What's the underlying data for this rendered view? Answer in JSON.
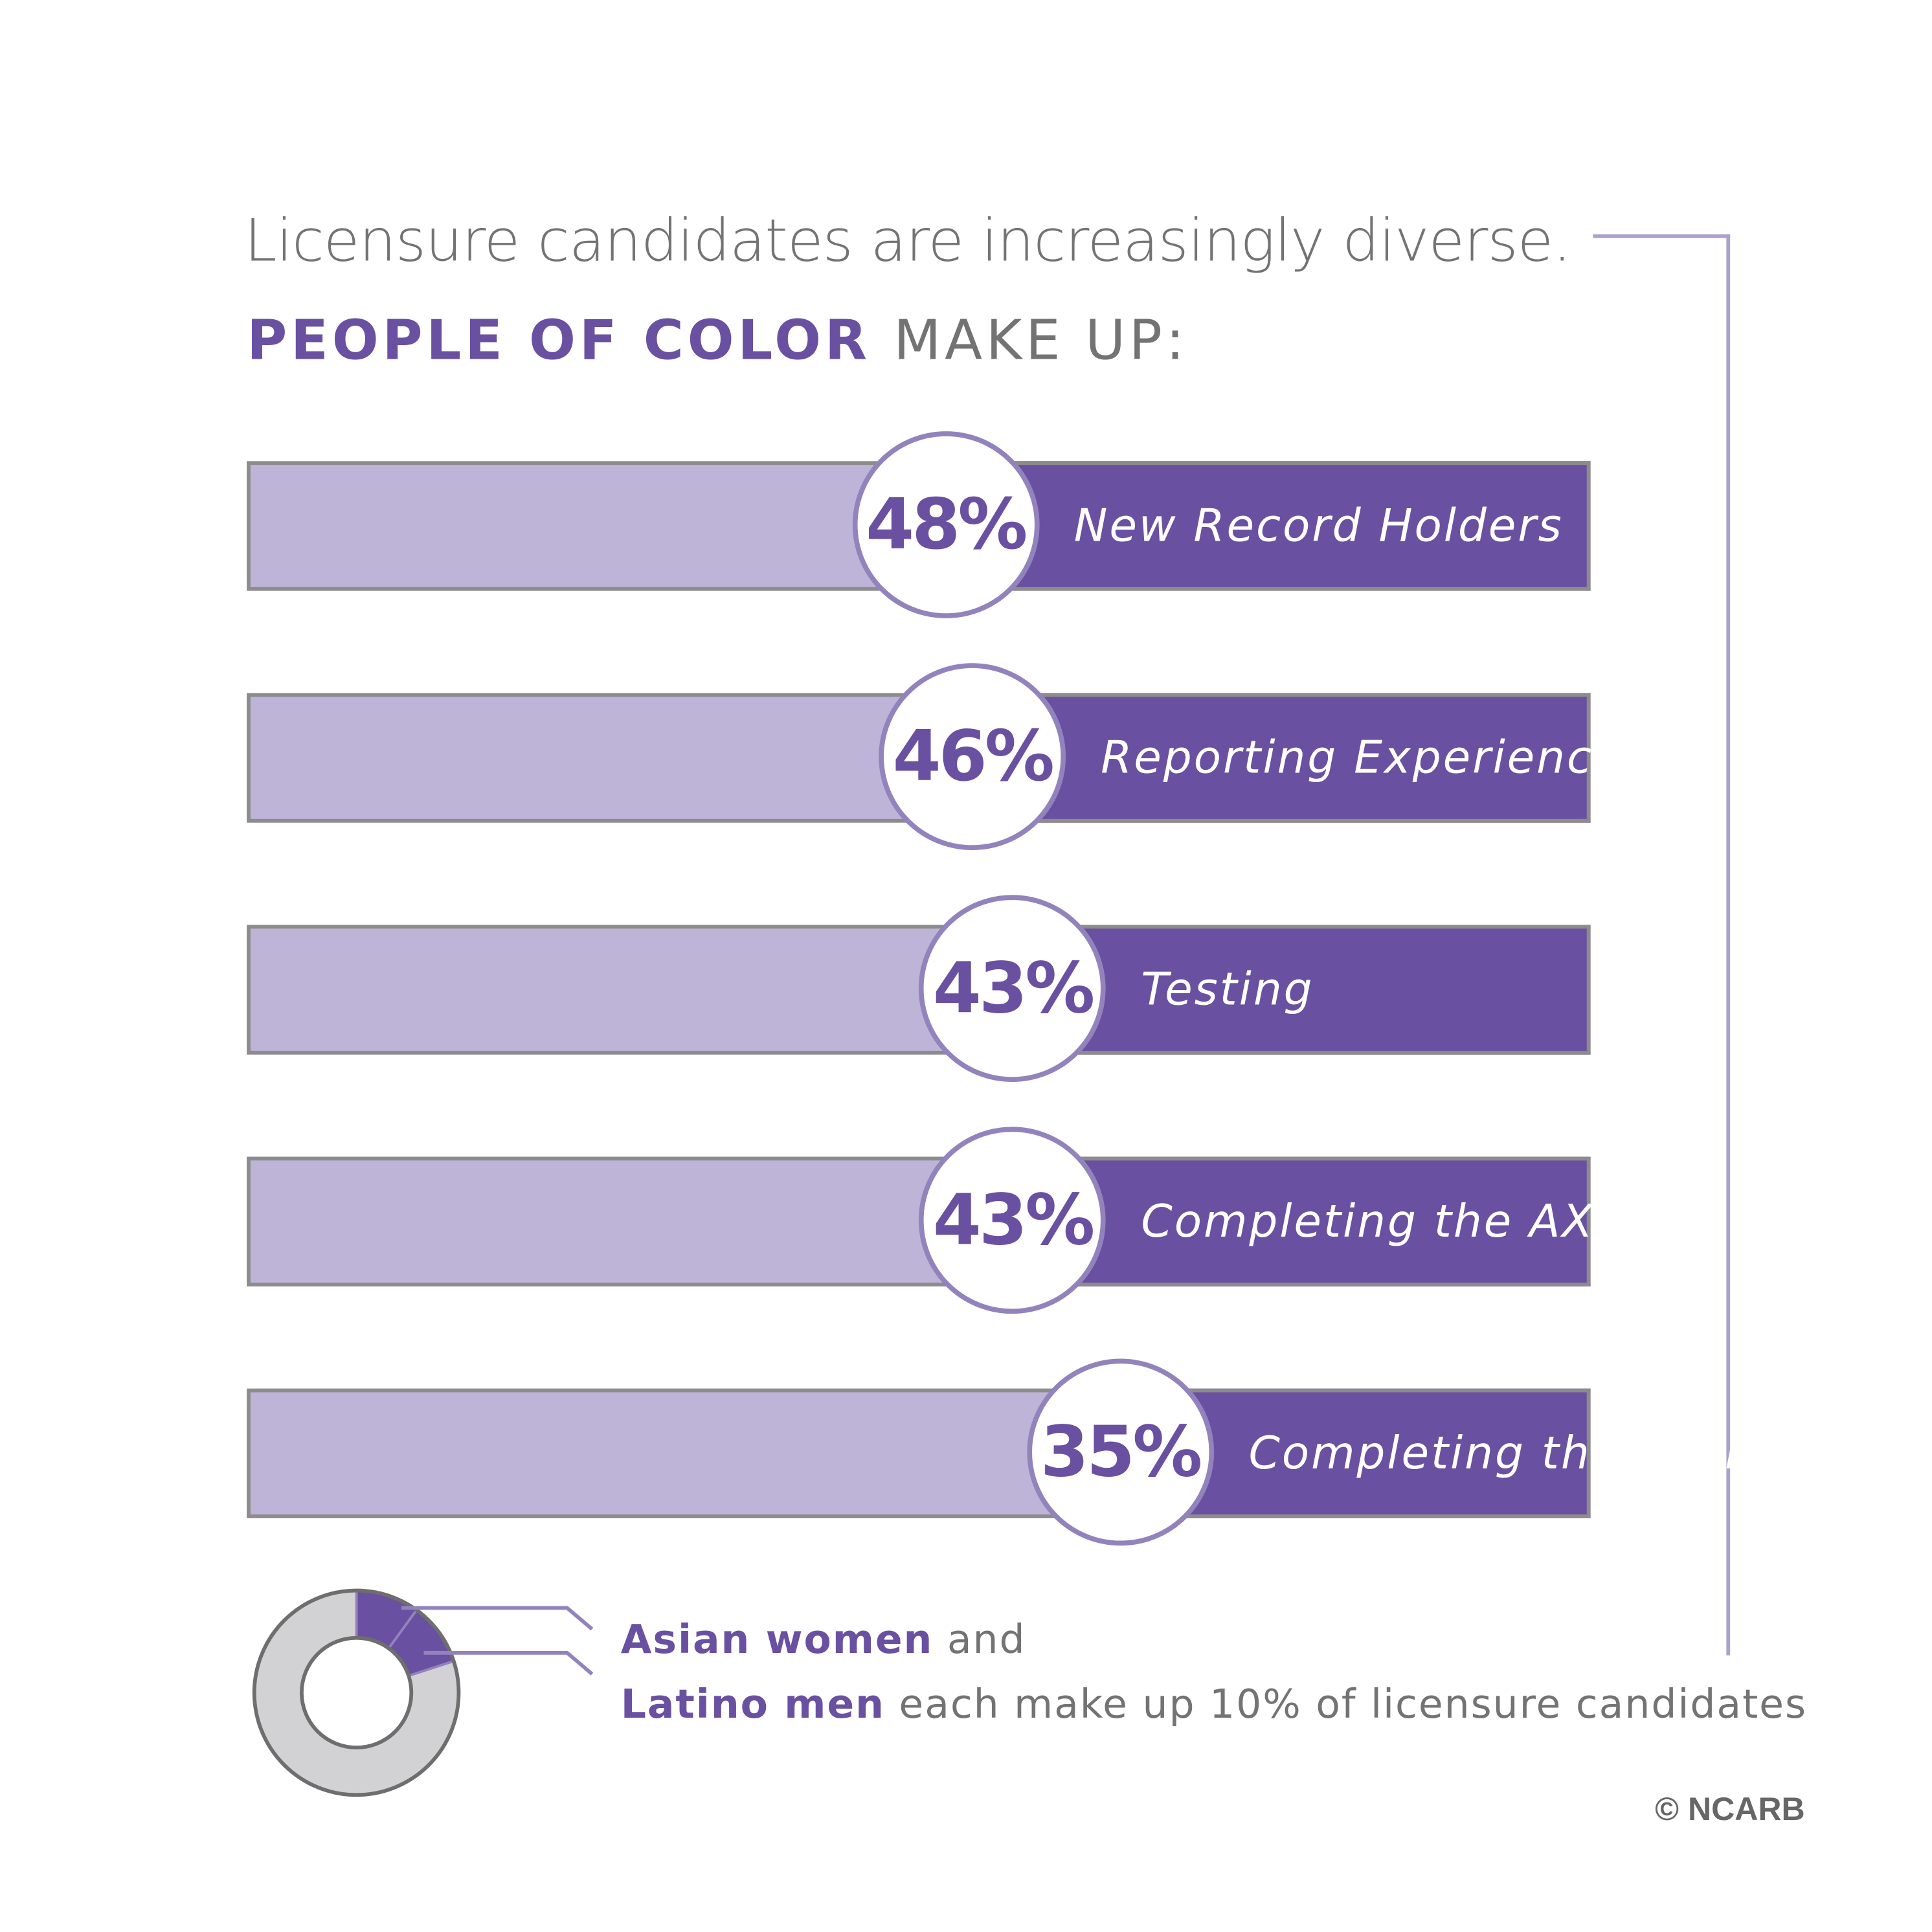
{
  "header": {
    "headline": "Licensure candidates are increasingly diverse.",
    "subhead_accent": "PEOPLE OF COLOR",
    "subhead_rest": "MAKE UP:"
  },
  "colors": {
    "accent": "#6a50a1",
    "bar_background": "#bdb4d8",
    "circle_border": "#9283bd",
    "text_gray": "#737373",
    "donut_gray": "#d2d2d4"
  },
  "chart_data": [
    {
      "type": "bar",
      "orientation": "horizontal",
      "categories": [
        "New Record Holders",
        "Reporting Experience",
        "Testing",
        "Completing the AXP",
        "Completing the Exam"
      ],
      "values": [
        48,
        46,
        43,
        43,
        35
      ],
      "value_labels": [
        "48%",
        "46%",
        "43%",
        "43%",
        "35%"
      ],
      "unit": "%",
      "xlim": [
        0,
        100
      ]
    },
    {
      "type": "pie",
      "style": "donut",
      "categories": [
        "Asian women",
        "Latino men"
      ],
      "values": [
        10,
        10
      ],
      "unit": "%"
    }
  ],
  "legend": {
    "line1_bold": "Asian women",
    "line1_rest": "and",
    "line2_bold": "Latino men",
    "line2_rest": "each make up 10% of licensure candidates"
  },
  "footer": {
    "copyright": "© NCARB"
  }
}
